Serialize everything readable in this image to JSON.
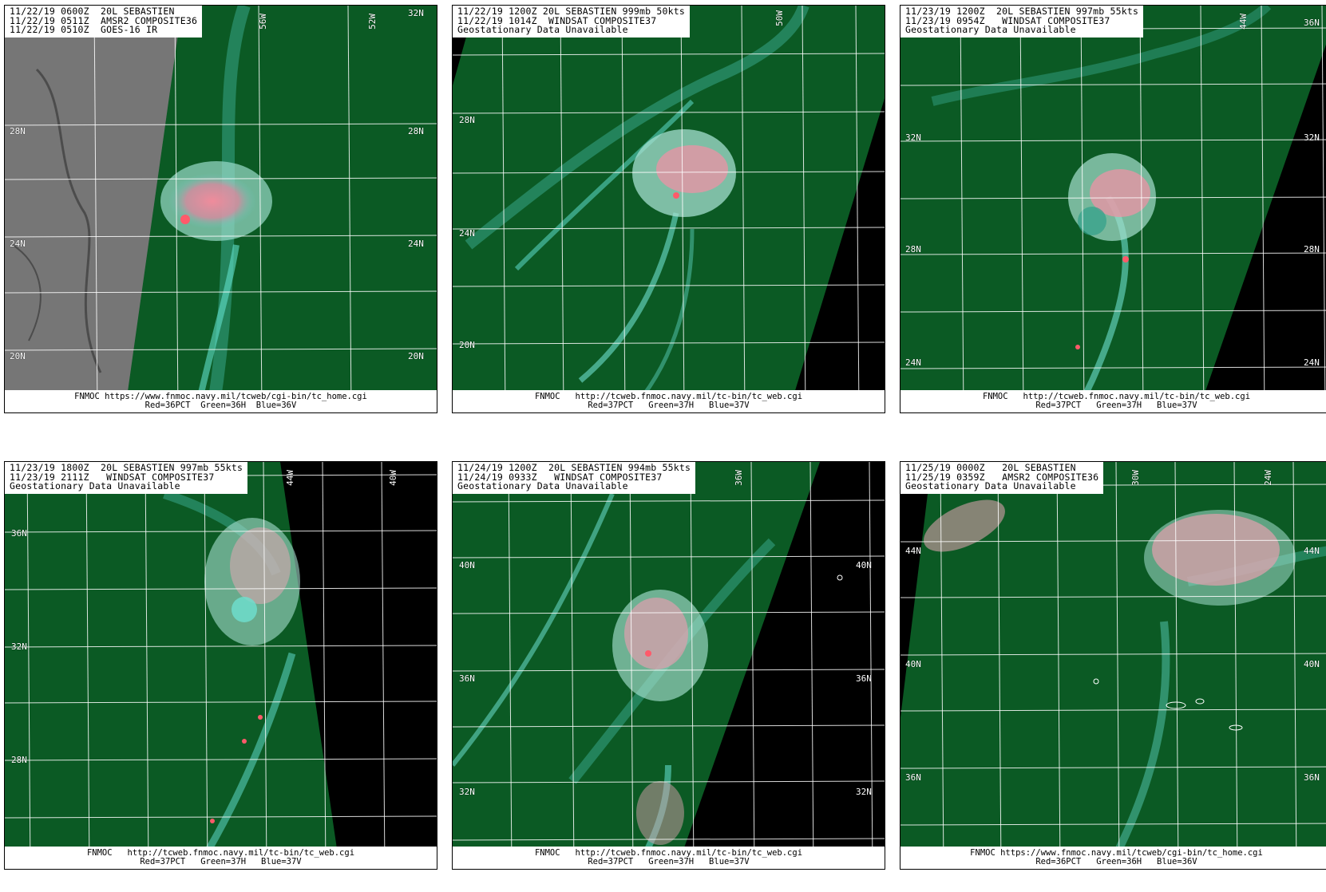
{
  "panels": [
    {
      "header": [
        "11/22/19 0600Z  20L SEBASTIEN",
        "11/22/19 0511Z  AMSR2 COMPOSITE36",
        "11/22/19 0510Z  GOES-16 IR"
      ],
      "footer": [
        "FNMOC https://www.fnmoc.navy.mil/tcweb/cgi-bin/tc_home.cgi",
        "Red=36PCT  Green=36H  Blue=36V"
      ],
      "lat_labels": [
        "32N",
        "28N",
        "28N",
        "24N",
        "24N",
        "20N",
        "20N"
      ],
      "lon_labels": [
        "56W",
        "52W"
      ]
    },
    {
      "header": [
        "11/22/19 1200Z 20L SEBASTIEN 999mb 50kts",
        "11/22/19 1014Z  WINDSAT COMPOSITE37",
        "Geostationary Data Unavailable"
      ],
      "footer": [
        "FNMOC   http://tcweb.fnmoc.navy.mil/tc-bin/tc_web.cgi",
        "Red=37PCT   Green=37H   Blue=37V"
      ],
      "lat_labels": [
        "28N",
        "24N",
        "20N"
      ],
      "lon_labels": [
        "50W"
      ]
    },
    {
      "header": [
        "11/23/19 1200Z  20L SEBASTIEN 997mb 55kts",
        "11/23/19 0954Z   WINDSAT COMPOSITE37",
        "Geostationary Data Unavailable"
      ],
      "footer": [
        "FNMOC   http://tcweb.fnmoc.navy.mil/tc-bin/tc_web.cgi",
        "Red=37PCT   Green=37H   Blue=37V"
      ],
      "lat_labels": [
        "36N",
        "32N",
        "32N",
        "28N",
        "28N",
        "24N",
        "24N"
      ],
      "lon_labels": [
        "44W"
      ]
    },
    {
      "header": [
        "11/23/19 1800Z  20L SEBASTIEN 997mb 55kts",
        "11/23/19 2111Z   WINDSAT COMPOSITE37",
        "Geostationary Data Unavailable"
      ],
      "footer": [
        "FNMOC   http://tcweb.fnmoc.navy.mil/tc-bin/tc_web.cgi",
        "Red=37PCT   Green=37H   Blue=37V"
      ],
      "lat_labels": [
        "36N",
        "32N",
        "28N"
      ],
      "lon_labels": [
        "44W",
        "40W"
      ]
    },
    {
      "header": [
        "11/24/19 1200Z  20L SEBASTIEN 994mb 55kts",
        "11/24/19 0933Z   WINDSAT COMPOSITE37",
        "Geostationary Data Unavailable"
      ],
      "footer": [
        "FNMOC   http://tcweb.fnmoc.navy.mil/tc-bin/tc_web.cgi",
        "Red=37PCT   Green=37H   Blue=37V"
      ],
      "lat_labels": [
        "40N",
        "40N",
        "36N",
        "36N",
        "32N",
        "32N"
      ],
      "lon_labels": [
        "36W"
      ]
    },
    {
      "header": [
        "11/25/19 0000Z   20L SEBASTIEN",
        "11/25/19 0359Z   AMSR2 COMPOSITE36",
        "Geostationary Data Unavailable"
      ],
      "footer": [
        "FNMOC https://www.fnmoc.navy.mil/tcweb/cgi-bin/tc_home.cgi",
        "Red=36PCT   Green=36H   Blue=36V"
      ],
      "lat_labels": [
        "44N",
        "44N",
        "40N",
        "40N",
        "36N",
        "36N"
      ],
      "lon_labels": [
        "30W",
        "24W"
      ]
    }
  ]
}
